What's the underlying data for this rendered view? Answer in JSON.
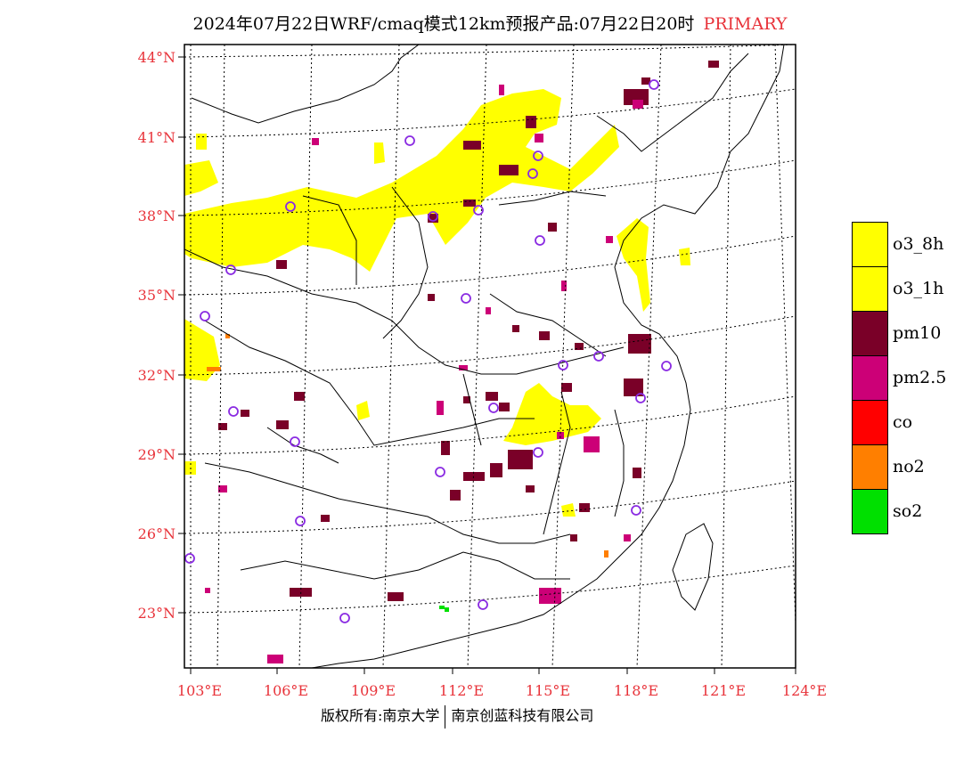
{
  "title": {
    "text": "2024年07月22日WRF/cmaq模式12km预报产品:07月22日20时",
    "tag": "PRIMARY"
  },
  "lat_labels": [
    "44°N",
    "41°N",
    "38°N",
    "35°N",
    "32°N",
    "29°N",
    "26°N",
    "23°N"
  ],
  "lon_labels": [
    "103°E",
    "106°E",
    "109°E",
    "112°E",
    "115°E",
    "118°E",
    "121°E",
    "124°E"
  ],
  "legend": [
    {
      "label": "o3_8h",
      "color": "#ffff00"
    },
    {
      "label": "o3_1h",
      "color": "#ffff00"
    },
    {
      "label": "pm10",
      "color": "#7a0028"
    },
    {
      "label": "pm2.5",
      "color": "#cc0077"
    },
    {
      "label": "co",
      "color": "#ff0000"
    },
    {
      "label": "no2",
      "color": "#ff7f00"
    },
    {
      "label": "so2",
      "color": "#00e000"
    }
  ],
  "colors": {
    "label_red": "#e8333a",
    "station_ring": "#8a2be2"
  },
  "footer": {
    "left": "版权所有:南京大学",
    "right": "南京创蓝科技有限公司"
  }
}
